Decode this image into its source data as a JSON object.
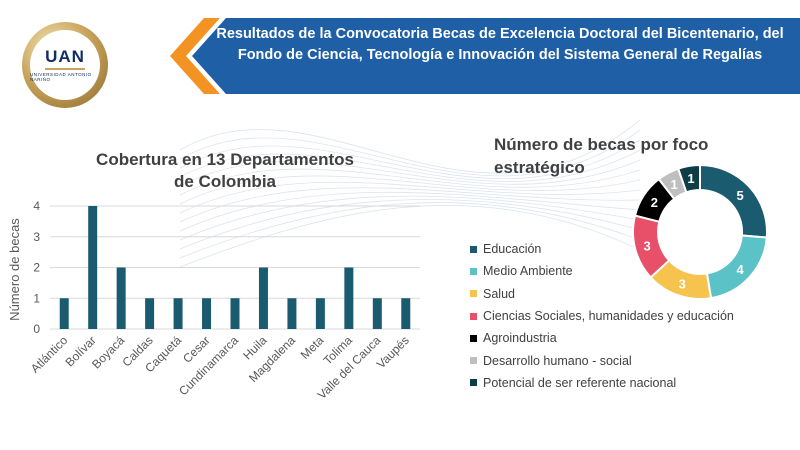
{
  "header": {
    "title": "Resultados de la Convocatoria Becas de Excelencia Doctoral del Bicentenario, del Fondo de Ciencia, Tecnología e Innovación del Sistema General de Regalías",
    "accent_color": "#f39323",
    "band_color": "#1f5fa6"
  },
  "logo": {
    "text": "UAN",
    "subtext": "UNIVERSIDAD ANTONIO NARIÑO"
  },
  "chart_data": [
    {
      "type": "bar",
      "title": "Cobertura en 13 Departamentos de Colombia",
      "xlabel": "",
      "ylabel": "Número de becas",
      "categories": [
        "Atlántico",
        "Bolívar",
        "Boyacá",
        "Caldas",
        "Caquetá",
        "Cesar",
        "Cundinamarca",
        "Huila",
        "Magdalena",
        "Meta",
        "Tolima",
        "Valle del Cauca",
        "Vaupés"
      ],
      "values": [
        1,
        4,
        2,
        1,
        1,
        1,
        1,
        2,
        1,
        1,
        2,
        1,
        1
      ],
      "ylim": [
        0,
        4
      ],
      "yticks": [
        0,
        1,
        2,
        3,
        4
      ],
      "grid": true,
      "color": "#1b5b70"
    },
    {
      "type": "pie",
      "title": "Número de becas por foco estratégico",
      "donut": true,
      "legend_position": "left",
      "slices": [
        {
          "label": "Educación",
          "value": 5,
          "color": "#1b5b70"
        },
        {
          "label": "Medio Ambiente",
          "value": 4,
          "color": "#5bc2c8"
        },
        {
          "label": "Salud",
          "value": 3,
          "color": "#f5c34e"
        },
        {
          "label": "Ciencias Sociales, humanidades y educación",
          "value": 3,
          "color": "#e8506a"
        },
        {
          "label": "Agroindustria",
          "value": 2,
          "color": "#000000"
        },
        {
          "label": "Desarrollo humano - social",
          "value": 1,
          "color": "#bfbfbf"
        },
        {
          "label": "Potencial de ser referente nacional",
          "value": 1,
          "color": "#0e3d47"
        }
      ]
    }
  ]
}
